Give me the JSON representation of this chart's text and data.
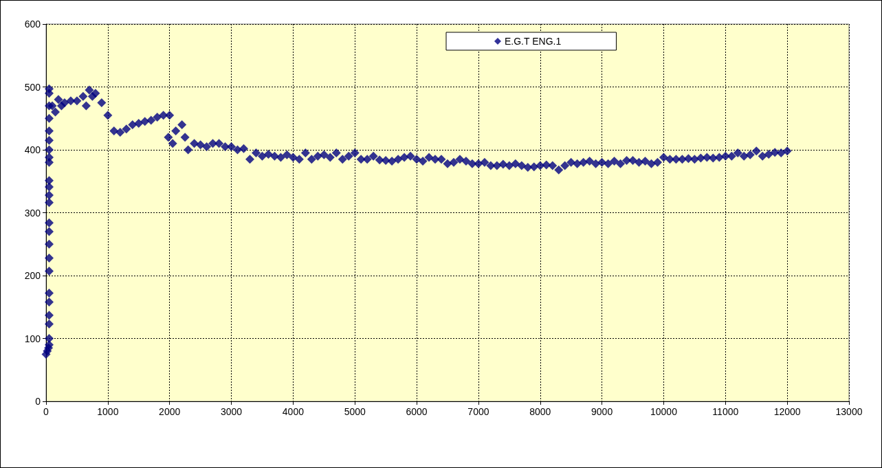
{
  "chart_data": {
    "type": "scatter",
    "marker": "diamond",
    "grid": true,
    "legend": "top right",
    "xlim": [
      0,
      13000
    ],
    "xticks": [
      0,
      1000,
      2000,
      3000,
      4000,
      5000,
      6000,
      7000,
      8000,
      9000,
      10000,
      11000,
      12000,
      13000
    ],
    "ylim": [
      0,
      600
    ],
    "yticks": [
      0,
      100,
      200,
      300,
      400,
      500,
      600
    ],
    "series": [
      {
        "name": "E.G.T ENG.1",
        "color": "#000080",
        "x": [
          0,
          20,
          40,
          50,
          50,
          50,
          50,
          50,
          50,
          50,
          50,
          50,
          50,
          50,
          50,
          50,
          50,
          50,
          50,
          50,
          50,
          50,
          50,
          50,
          50,
          50,
          50,
          100,
          150,
          200,
          250,
          300,
          400,
          500,
          600,
          650,
          700,
          750,
          800,
          900,
          1000,
          1100,
          1200,
          1300,
          1400,
          1500,
          1600,
          1700,
          1800,
          1900,
          1980,
          2000,
          2050,
          2100,
          2200,
          2250,
          2300,
          2400,
          2500,
          2600,
          2700,
          2800,
          2900,
          3000,
          3100,
          3200,
          3300,
          3400,
          3500,
          3600,
          3700,
          3800,
          3900,
          4000,
          4100,
          4200,
          4300,
          4400,
          4500,
          4600,
          4700,
          4800,
          4900,
          5000,
          5100,
          5200,
          5300,
          5400,
          5500,
          5600,
          5700,
          5800,
          5900,
          6000,
          6100,
          6200,
          6300,
          6400,
          6500,
          6600,
          6700,
          6800,
          6900,
          7000,
          7100,
          7200,
          7300,
          7400,
          7500,
          7600,
          7700,
          7800,
          7900,
          8000,
          8100,
          8200,
          8300,
          8400,
          8500,
          8600,
          8700,
          8800,
          8900,
          9000,
          9100,
          9200,
          9300,
          9400,
          9500,
          9600,
          9700,
          9800,
          9900,
          10000,
          10100,
          10200,
          10300,
          10400,
          10500,
          10600,
          10700,
          10800,
          10900,
          11000,
          11100,
          11200,
          11300,
          11400,
          11500,
          11600,
          11700,
          11800,
          11900,
          12000
        ],
        "values": [
          75,
          80,
          85,
          90,
          100,
          123,
          137,
          158,
          172,
          207,
          228,
          250,
          270,
          284,
          316,
          328,
          341,
          351,
          380,
          388,
          400,
          415,
          430,
          450,
          470,
          490,
          497,
          470,
          460,
          480,
          470,
          475,
          478,
          478,
          485,
          470,
          495,
          485,
          490,
          475,
          455,
          430,
          428,
          433,
          440,
          442,
          445,
          447,
          452,
          455,
          420,
          455,
          410,
          430,
          440,
          420,
          400,
          410,
          408,
          405,
          410,
          410,
          405,
          405,
          400,
          402,
          385,
          395,
          390,
          393,
          390,
          388,
          392,
          388,
          385,
          395,
          385,
          390,
          392,
          388,
          395,
          385,
          390,
          395,
          385,
          385,
          390,
          384,
          383,
          382,
          385,
          388,
          390,
          385,
          382,
          388,
          385,
          385,
          378,
          380,
          385,
          382,
          378,
          378,
          380,
          375,
          375,
          377,
          375,
          378,
          375,
          372,
          373,
          375,
          376,
          375,
          368,
          375,
          380,
          378,
          380,
          382,
          378,
          380,
          378,
          382,
          378,
          383,
          383,
          380,
          382,
          378,
          380,
          388,
          385,
          385,
          385,
          386,
          385,
          387,
          388,
          387,
          388,
          390,
          390,
          395,
          390,
          392,
          398,
          390,
          393,
          396,
          395,
          398
        ]
      }
    ]
  }
}
